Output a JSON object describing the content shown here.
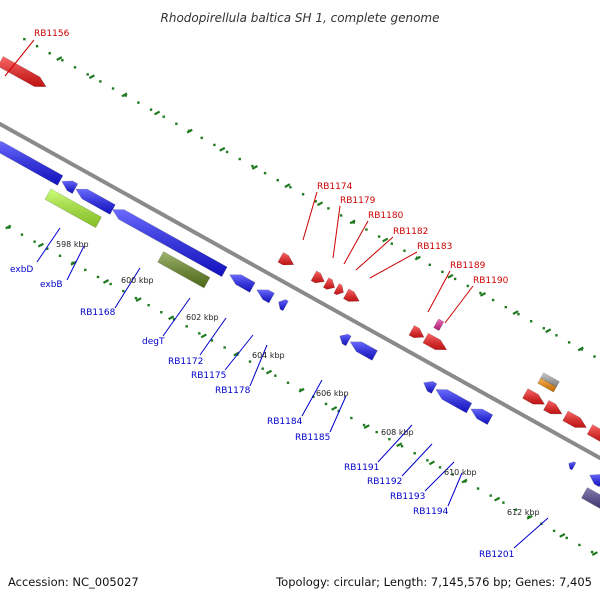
{
  "title": "Rhodopirellula baltica SH 1, complete genome",
  "footer": {
    "accession": "Accession: NC_005027",
    "summary": "Topology: circular; Length: 7,145,576 bp; Genes: 7,405"
  },
  "colors": {
    "backbone": "#8a8a8a",
    "tick": "#1f7a1f",
    "forward_gene": "#ff1a1a",
    "reverse_gene": "#1a1aff",
    "forward_label": "#cc0000",
    "reverse_label": "#0000cc",
    "rna": "#e8289a",
    "light_green": "#b3ff33",
    "olive": "#6b8e23",
    "orange": "#ff8c00",
    "gray": "#b0b0b0",
    "purple": "#483d8b"
  },
  "kbp_ticks": [
    "598 kbp",
    "600 kbp",
    "602 kbp",
    "604 kbp",
    "606 kbp",
    "608 kbp",
    "610 kbp",
    "612 kbp"
  ],
  "forward_labels": [
    "RB1156",
    "RB1174",
    "RB1179",
    "RB1180",
    "RB1182",
    "RB1183",
    "RB1189",
    "RB1190"
  ],
  "reverse_labels": [
    "exbD",
    "exbB",
    "RB1168",
    "degT",
    "RB1172",
    "RB1175",
    "RB1178",
    "RB1184",
    "RB1185",
    "RB1191",
    "RB1192",
    "RB1193",
    "RB1194",
    "RB1201"
  ]
}
